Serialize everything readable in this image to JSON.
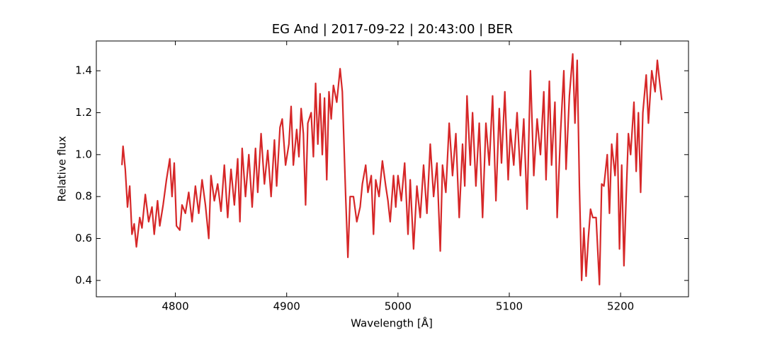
{
  "chart_data": {
    "type": "line",
    "title": "EG And | 2017-09-22 | 20:43:00 | BER",
    "x_label": "Wavelength [Å]",
    "y_label": "Relative flux",
    "x": [
      4752,
      4753,
      4755,
      4757,
      4759,
      4761,
      4763,
      4765,
      4768,
      4770,
      4773,
      4776,
      4779,
      4781,
      4784,
      4786,
      4789,
      4792,
      4795,
      4797,
      4799,
      4801,
      4804,
      4806,
      4809,
      4812,
      4815,
      4818,
      4821,
      4824,
      4827,
      4830,
      4832,
      4835,
      4838,
      4841,
      4844,
      4847,
      4850,
      4853,
      4856,
      4858,
      4860,
      4863,
      4866,
      4869,
      4872,
      4874,
      4877,
      4880,
      4883,
      4886,
      4889,
      4891,
      4894,
      4896,
      4899,
      4902,
      4904,
      4906,
      4909,
      4911,
      4913,
      4915,
      4917,
      4919,
      4922,
      4924,
      4926,
      4928,
      4930,
      4932,
      4934,
      4936,
      4938,
      4940,
      4942,
      4945,
      4948,
      4950,
      4953,
      4955,
      4957,
      4960,
      4963,
      4966,
      4968,
      4971,
      4973,
      4976,
      4978,
      4980,
      4983,
      4986,
      4989,
      4991,
      4993,
      4996,
      4998,
      5000,
      5003,
      5006,
      5009,
      5011,
      5014,
      5017,
      5020,
      5023,
      5026,
      5029,
      5032,
      5035,
      5038,
      5040,
      5043,
      5046,
      5049,
      5052,
      5055,
      5058,
      5060,
      5062,
      5065,
      5067,
      5070,
      5073,
      5076,
      5079,
      5082,
      5085,
      5088,
      5091,
      5093,
      5096,
      5099,
      5101,
      5104,
      5107,
      5110,
      5113,
      5116,
      5119,
      5122,
      5125,
      5128,
      5131,
      5133,
      5136,
      5138,
      5141,
      5143,
      5146,
      5149,
      5151,
      5154,
      5157,
      5159,
      5161,
      5163,
      5165,
      5167,
      5169,
      5171,
      5173,
      5175,
      5178,
      5181,
      5183,
      5185,
      5188,
      5190,
      5192,
      5195,
      5197,
      5199,
      5201,
      5203,
      5205,
      5207,
      5209,
      5212,
      5214,
      5216,
      5218,
      5220,
      5223,
      5225,
      5228,
      5231,
      5233,
      5235,
      5237
    ],
    "series": [
      {
        "name": "EG And",
        "color": "#d62728",
        "values": [
          0.95,
          1.04,
          0.93,
          0.75,
          0.85,
          0.62,
          0.67,
          0.56,
          0.7,
          0.65,
          0.81,
          0.68,
          0.75,
          0.62,
          0.78,
          0.66,
          0.76,
          0.88,
          0.98,
          0.8,
          0.96,
          0.66,
          0.64,
          0.76,
          0.72,
          0.82,
          0.68,
          0.85,
          0.72,
          0.88,
          0.76,
          0.6,
          0.9,
          0.78,
          0.86,
          0.73,
          0.95,
          0.7,
          0.93,
          0.76,
          0.98,
          0.68,
          1.03,
          0.8,
          1.0,
          0.75,
          1.03,
          0.82,
          1.1,
          0.86,
          1.02,
          0.8,
          1.07,
          0.85,
          1.13,
          1.17,
          0.95,
          1.05,
          1.23,
          0.95,
          1.12,
          0.99,
          1.22,
          1.1,
          0.76,
          1.15,
          1.2,
          0.99,
          1.34,
          1.05,
          1.29,
          1.0,
          1.27,
          0.88,
          1.3,
          1.17,
          1.33,
          1.25,
          1.41,
          1.3,
          0.8,
          0.51,
          0.8,
          0.8,
          0.68,
          0.75,
          0.86,
          0.95,
          0.82,
          0.9,
          0.62,
          0.88,
          0.8,
          0.97,
          0.85,
          0.78,
          0.68,
          0.9,
          0.75,
          0.9,
          0.78,
          0.96,
          0.62,
          0.88,
          0.55,
          0.85,
          0.7,
          0.95,
          0.72,
          1.05,
          0.8,
          0.96,
          0.54,
          0.95,
          0.82,
          1.15,
          0.9,
          1.1,
          0.7,
          1.05,
          0.85,
          1.28,
          0.95,
          1.2,
          0.85,
          1.15,
          0.7,
          1.15,
          0.95,
          1.28,
          0.78,
          1.22,
          0.96,
          1.3,
          0.88,
          1.12,
          0.95,
          1.2,
          0.9,
          1.17,
          0.74,
          1.4,
          0.9,
          1.17,
          1.0,
          1.3,
          0.88,
          1.35,
          0.95,
          1.25,
          0.7,
          1.1,
          1.4,
          0.93,
          1.28,
          1.48,
          1.15,
          1.45,
          0.85,
          0.4,
          0.65,
          0.42,
          0.6,
          0.74,
          0.7,
          0.7,
          0.38,
          0.86,
          0.85,
          1.0,
          0.72,
          1.05,
          0.9,
          1.1,
          0.55,
          0.95,
          0.47,
          0.8,
          1.1,
          1.0,
          1.25,
          0.92,
          1.2,
          0.82,
          1.2,
          1.38,
          1.15,
          1.4,
          1.3,
          1.45,
          1.35,
          1.26
        ]
      }
    ],
    "xlim": [
      4729,
      5261
    ],
    "ylim": [
      0.322,
      1.542
    ],
    "xticks": [
      4800,
      4900,
      5000,
      5100,
      5200
    ],
    "yticks": [
      0.4,
      0.6,
      0.8,
      {
        "value": 1,
        "label": "1.0"
      },
      1.2,
      1.4
    ]
  }
}
